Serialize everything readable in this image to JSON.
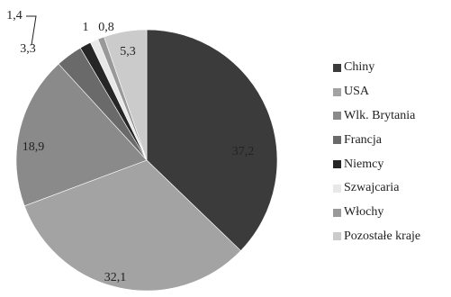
{
  "chart_data": {
    "type": "pie",
    "title": "",
    "categories": [
      "Chiny",
      "USA",
      "Wlk. Brytania",
      "Francja",
      "Niemcy",
      "Szwajcaria",
      "Włochy",
      "Pozostałe kraje"
    ],
    "values": [
      37.2,
      32.1,
      18.9,
      3.3,
      1.4,
      1,
      0.8,
      5.3
    ],
    "value_labels": [
      "37,2",
      "32,1",
      "18,9",
      "3,3",
      "1,4",
      "1",
      "0,8",
      "5,3"
    ],
    "colors": [
      "#3b3b3b",
      "#a3a3a3",
      "#8a8a8a",
      "#6a6a6a",
      "#262626",
      "#e8e8e8",
      "#999999",
      "#cbcbcb"
    ],
    "start_angle_deg": 0,
    "direction": "clockwise",
    "legend_position": "right"
  }
}
